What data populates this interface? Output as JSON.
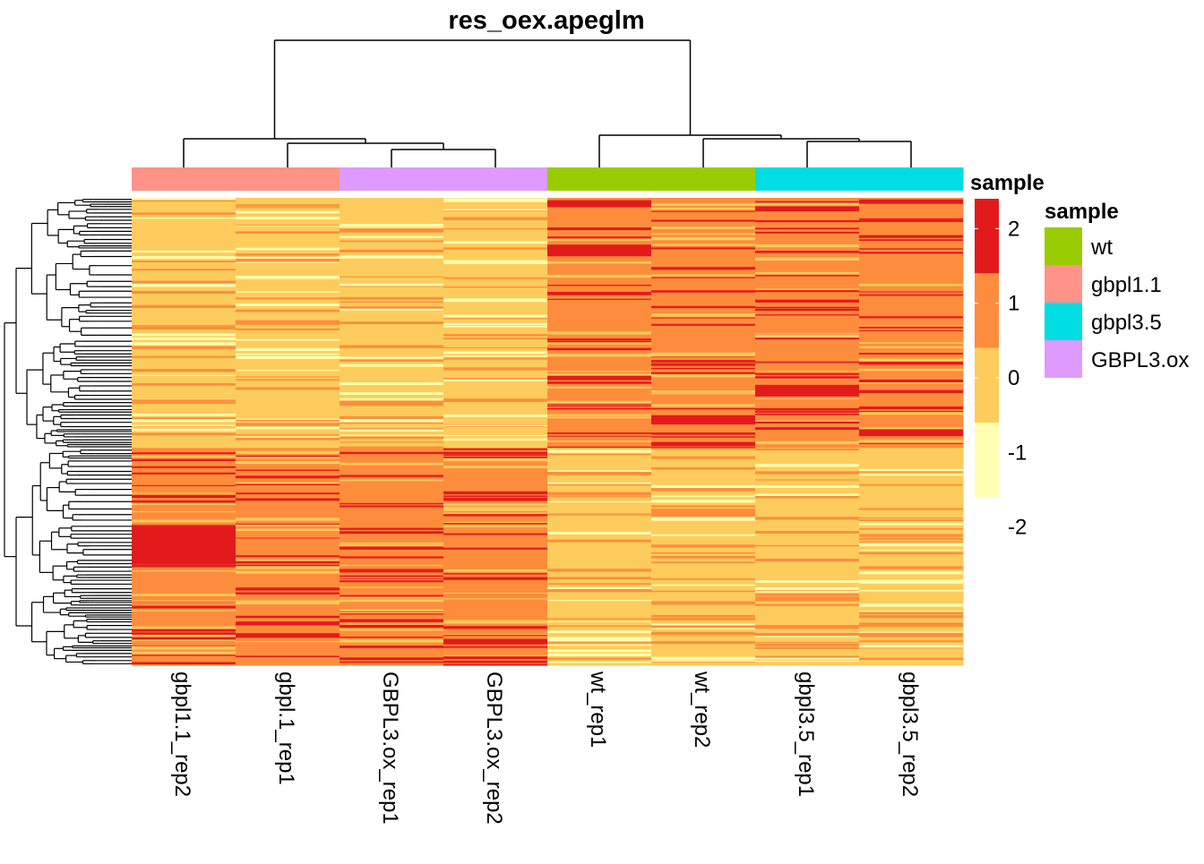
{
  "chart_data": {
    "type": "heatmap",
    "title": "res_oex.apeglm",
    "columns": [
      "gbpl1.1_rep2",
      "gbpl.1_rep1",
      "GBPL3.ox_rep1",
      "GBPL3.ox_rep2",
      "wt_rep1",
      "wt_rep2",
      "gbpl3.5_rep1",
      "gbpl3.5_rep2"
    ],
    "column_groups": [
      "gbpl1.1",
      "gbpl1.1",
      "GBPL3.ox",
      "GBPL3.ox",
      "wt",
      "wt",
      "gbpl3.5",
      "gbpl3.5"
    ],
    "annotation_title": "sample",
    "legend_title_scale": "sample",
    "legend_title_groups": "sample",
    "groups": [
      {
        "name": "wt",
        "color": "#99CC00"
      },
      {
        "name": "gbpl1.1",
        "color": "#FF938A"
      },
      {
        "name": "gbpl3.5",
        "color": "#00DDE3"
      },
      {
        "name": "GBPL3.ox",
        "color": "#DF9AFF"
      }
    ],
    "color_scale": {
      "ticks": [
        2,
        1,
        0,
        -1,
        -2
      ],
      "tick_labels": [
        "2",
        "1",
        "0",
        "-1",
        "-2"
      ],
      "range": [
        -2.4,
        2.4
      ],
      "bins": [
        {
          "from": 1.4,
          "to": 2.4,
          "color": "#E31A1C"
        },
        {
          "from": 0.4,
          "to": 1.4,
          "color": "#FD8D3C"
        },
        {
          "from": -0.6,
          "to": 0.4,
          "color": "#FECC5C"
        },
        {
          "from": -1.6,
          "to": -0.6,
          "color": "#FFFFB2"
        }
      ]
    },
    "row_blocks": [
      {
        "fraction": 0.535,
        "values": [
          -0.1,
          -0.1,
          -0.1,
          -0.1,
          1.0,
          1.0,
          1.0,
          1.0
        ]
      },
      {
        "fraction": 0.465,
        "values": [
          1.0,
          1.0,
          1.0,
          1.0,
          -0.1,
          -0.1,
          -0.1,
          -0.1
        ]
      }
    ],
    "highlight_bands": [
      {
        "column": 0,
        "from": 0.7,
        "to": 0.785,
        "value": 2.0
      },
      {
        "column": 4,
        "from": 0.1,
        "to": 0.125,
        "value": 2.0
      },
      {
        "column": 4,
        "from": 0.005,
        "to": 0.02,
        "value": 2.0
      },
      {
        "column": 5,
        "from": 0.465,
        "to": 0.485,
        "value": 2.0
      },
      {
        "column": 6,
        "from": 0.4,
        "to": 0.425,
        "value": 2.0
      },
      {
        "column": 7,
        "from": 0.495,
        "to": 0.51,
        "value": 2.0
      }
    ],
    "column_dendrogram": "((gbpl1.1_rep2,(gbpl.1_rep1,(GBPL3.ox_rep1,GBPL3.ox_rep2))),(wt_rep1,(wt_rep2,(gbpl3.5_rep1,gbpl3.5_rep2))))",
    "row_dendrogram": "two main clusters (upper and lower row blocks)"
  }
}
